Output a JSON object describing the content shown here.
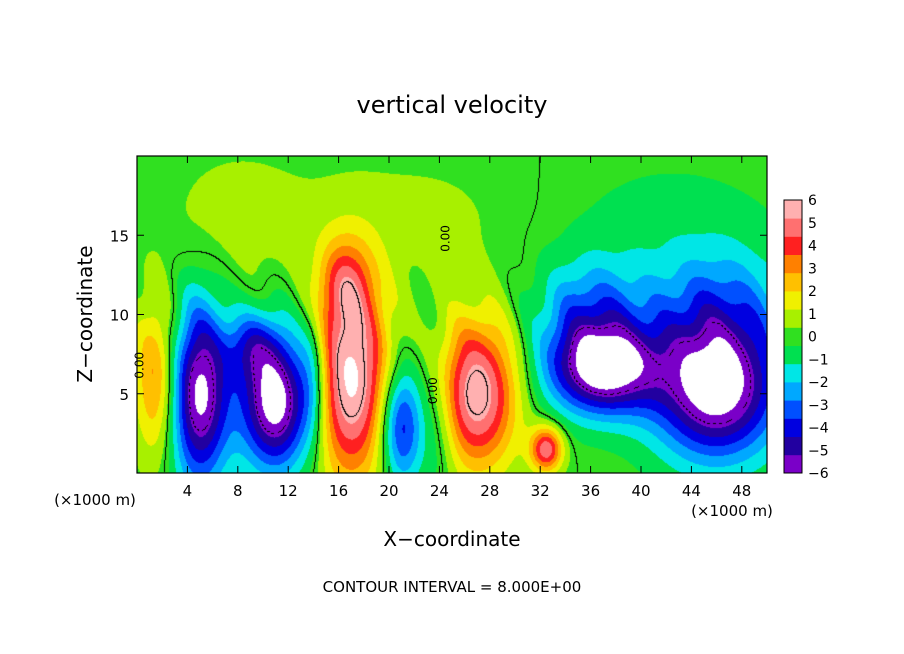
{
  "chart_data": {
    "type": "heatmap",
    "title": "vertical velocity",
    "xlabel": "X−coordinate",
    "ylabel": "Z−coordinate",
    "x_unit": "(×1000 m)",
    "y_unit": "(×1000 m)",
    "xlim": [
      0,
      50
    ],
    "ylim": [
      0,
      20
    ],
    "x_ticks": [
      4,
      8,
      12,
      16,
      20,
      24,
      28,
      32,
      36,
      40,
      44,
      48
    ],
    "y_ticks": [
      5,
      10,
      15
    ],
    "x_tick_labels": [
      "4",
      "8",
      "12",
      "16",
      "20",
      "24",
      "28",
      "32",
      "36",
      "40",
      "44",
      "48"
    ],
    "y_tick_labels": [
      "5",
      "10",
      "15"
    ],
    "colorbar": {
      "min": -6,
      "max": 6,
      "ticks": [
        6,
        5,
        4,
        3,
        2,
        1,
        0,
        -1,
        -2,
        -3,
        -4,
        -5,
        -6
      ],
      "tick_labels": [
        "6",
        "5",
        "4",
        "3",
        "2",
        "1",
        "0",
        "−1",
        "−2",
        "−3",
        "−4",
        "−5",
        "−6"
      ],
      "colors": [
        "#7a00c8",
        "#2200a0",
        "#0000e0",
        "#0050ff",
        "#00a8ff",
        "#00e6e6",
        "#00e050",
        "#30e020",
        "#a8f000",
        "#f0f000",
        "#ffc000",
        "#ff8000",
        "#ff2020",
        "#ff7070",
        "#ffb0b0"
      ]
    },
    "contour_labels": [
      "0.00",
      "0.00",
      "0.00"
    ],
    "annotation": "CONTOUR INTERVAL = 8.000E+00",
    "features": [
      {
        "x": 5,
        "z": 5,
        "w": -6.5,
        "sx": 1.6,
        "sz": 4.0
      },
      {
        "x": 1.5,
        "z": 6,
        "w": 3.2,
        "sx": 1.2,
        "sz": 3.5
      },
      {
        "x": 11,
        "z": 4.5,
        "w": -7,
        "sx": 2.0,
        "sz": 3.0
      },
      {
        "x": 17,
        "z": 6,
        "w": 6.5,
        "sx": 2.1,
        "sz": 4.5
      },
      {
        "x": 16.5,
        "z": 12,
        "w": 2.5,
        "sx": 1.5,
        "sz": 2.0
      },
      {
        "x": 21,
        "z": 3,
        "w": -4.5,
        "sx": 1.2,
        "sz": 2.6
      },
      {
        "x": 27,
        "z": 5,
        "w": 6.0,
        "sx": 2.2,
        "sz": 3.3
      },
      {
        "x": 32.5,
        "z": 1.5,
        "w": 5.0,
        "sx": 0.9,
        "sz": 1.0
      },
      {
        "x": 37,
        "z": 6.5,
        "w": -6.5,
        "sx": 3.0,
        "sz": 2.0
      },
      {
        "x": 36,
        "z": 10,
        "w": -3.0,
        "sx": 3.0,
        "sz": 2.5
      },
      {
        "x": 46,
        "z": 5,
        "w": -6.5,
        "sx": 3.5,
        "sz": 3.0
      },
      {
        "x": 46,
        "z": 10,
        "w": -3.0,
        "sx": 4.0,
        "sz": 3.0
      },
      {
        "x": 9,
        "z": 8,
        "w": -2.5,
        "sx": 1.5,
        "sz": 1.5
      },
      {
        "x": 24,
        "z": 3,
        "w": -1.5,
        "sx": 1.0,
        "sz": 3.0
      },
      {
        "x": 14,
        "z": 6,
        "w": -2.0,
        "sx": 0.8,
        "sz": 3.0
      },
      {
        "x": 8,
        "z": 16,
        "w": 0.8,
        "sx": 4.0,
        "sz": 3.0
      },
      {
        "x": 22,
        "z": 16,
        "w": 0.6,
        "sx": 6.0,
        "sz": 3.0
      },
      {
        "x": 42,
        "z": 16,
        "w": -0.6,
        "sx": 6.0,
        "sz": 3.0
      }
    ]
  }
}
